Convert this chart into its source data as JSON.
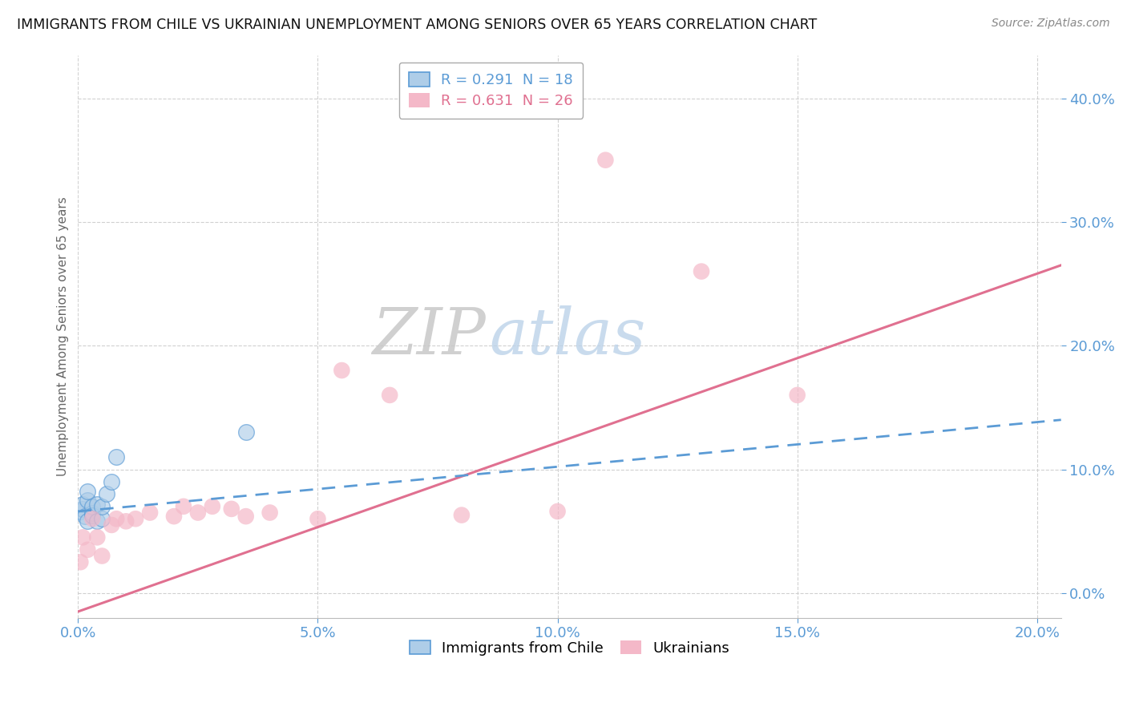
{
  "title": "IMMIGRANTS FROM CHILE VS UKRAINIAN UNEMPLOYMENT AMONG SENIORS OVER 65 YEARS CORRELATION CHART",
  "source": "Source: ZipAtlas.com",
  "xlabel_ticks": [
    "0.0%",
    "5.0%",
    "10.0%",
    "15.0%",
    "20.0%"
  ],
  "ylabel_ticks": [
    "0.0%",
    "10.0%",
    "20.0%",
    "30.0%",
    "40.0%"
  ],
  "xlim": [
    0.0,
    0.205
  ],
  "ylim": [
    -0.02,
    0.435
  ],
  "legend_entries": [
    {
      "label": "R = 0.291  N = 18",
      "color": "#aecde8"
    },
    {
      "label": "R = 0.631  N = 26",
      "color": "#f4b8c8"
    }
  ],
  "chile_scatter_x": [
    0.0005,
    0.001,
    0.001,
    0.0015,
    0.002,
    0.002,
    0.002,
    0.003,
    0.003,
    0.003,
    0.004,
    0.004,
    0.005,
    0.005,
    0.006,
    0.007,
    0.008,
    0.035
  ],
  "chile_scatter_y": [
    0.066,
    0.068,
    0.072,
    0.062,
    0.058,
    0.075,
    0.082,
    0.065,
    0.07,
    0.063,
    0.072,
    0.058,
    0.06,
    0.07,
    0.08,
    0.09,
    0.11,
    0.13
  ],
  "ukraine_scatter_x": [
    0.0005,
    0.001,
    0.002,
    0.003,
    0.004,
    0.005,
    0.007,
    0.008,
    0.01,
    0.012,
    0.015,
    0.02,
    0.022,
    0.025,
    0.028,
    0.032,
    0.035,
    0.04,
    0.05,
    0.055,
    0.065,
    0.08,
    0.1,
    0.11,
    0.13,
    0.15
  ],
  "ukraine_scatter_y": [
    0.025,
    0.045,
    0.035,
    0.06,
    0.045,
    0.03,
    0.055,
    0.06,
    0.058,
    0.06,
    0.065,
    0.062,
    0.07,
    0.065,
    0.07,
    0.068,
    0.062,
    0.065,
    0.06,
    0.18,
    0.16,
    0.063,
    0.066,
    0.35,
    0.26,
    0.16
  ],
  "chile_line_x": [
    0.0,
    0.205
  ],
  "chile_line_y": [
    0.066,
    0.14
  ],
  "ukraine_line_x": [
    0.0,
    0.205
  ],
  "ukraine_line_y": [
    -0.015,
    0.265
  ],
  "chile_color": "#aecde8",
  "ukraine_color": "#f4b8c8",
  "chile_line_color": "#5b9bd5",
  "ukraine_line_color": "#e07090",
  "watermark_zip": "ZIP",
  "watermark_atlas": "atlas",
  "background_color": "#ffffff",
  "grid_color": "#cccccc",
  "ylabel": "Unemployment Among Seniors over 65 years",
  "bottom_legend": [
    "Immigrants from Chile",
    "Ukrainians"
  ]
}
